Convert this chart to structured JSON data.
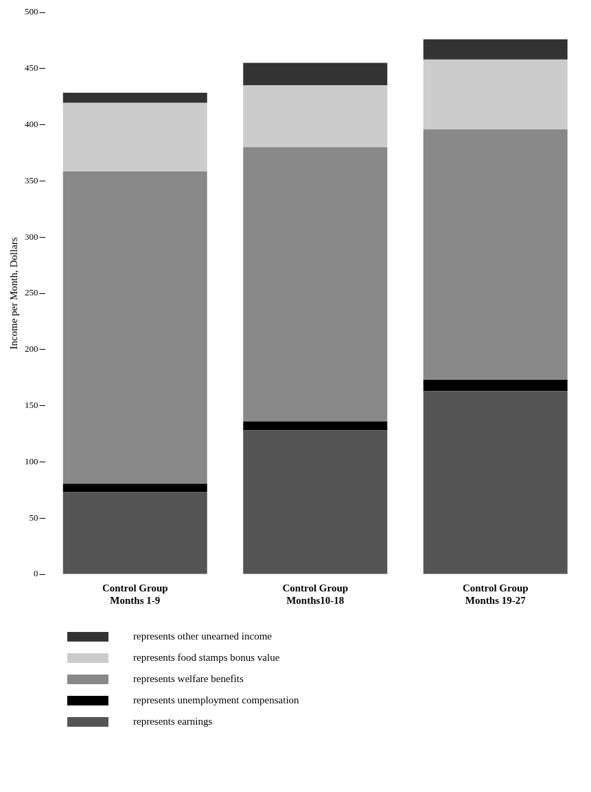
{
  "chart_data": {
    "type": "bar",
    "stacked": true,
    "ylabel": "Income per Month, Dollars",
    "categories": [
      "Control Group\nMonths 1-9",
      "Control Group\nMonths10-18",
      "Control Group\nMonths 19-27"
    ],
    "series": [
      {
        "name": "represents earnings",
        "color": "#555555",
        "values": [
          73,
          128,
          163
        ]
      },
      {
        "name": "represents unemployment compensation",
        "color": "#000000",
        "values": [
          7.5,
          8,
          10
        ]
      },
      {
        "name": "represents welfare benefits",
        "color": "#888888",
        "values": [
          278,
          244,
          223
        ]
      },
      {
        "name": "represents food stamps bonus value",
        "color": "#cccccc",
        "values": [
          61,
          55,
          62
        ]
      },
      {
        "name": "represents other unearned income",
        "color": "#333333",
        "values": [
          9,
          20,
          18
        ]
      }
    ],
    "ylim": [
      0,
      500
    ],
    "yticks": [
      0,
      50,
      100,
      150,
      200,
      250,
      300,
      350,
      400,
      450,
      500
    ],
    "legend": "bottom left"
  }
}
